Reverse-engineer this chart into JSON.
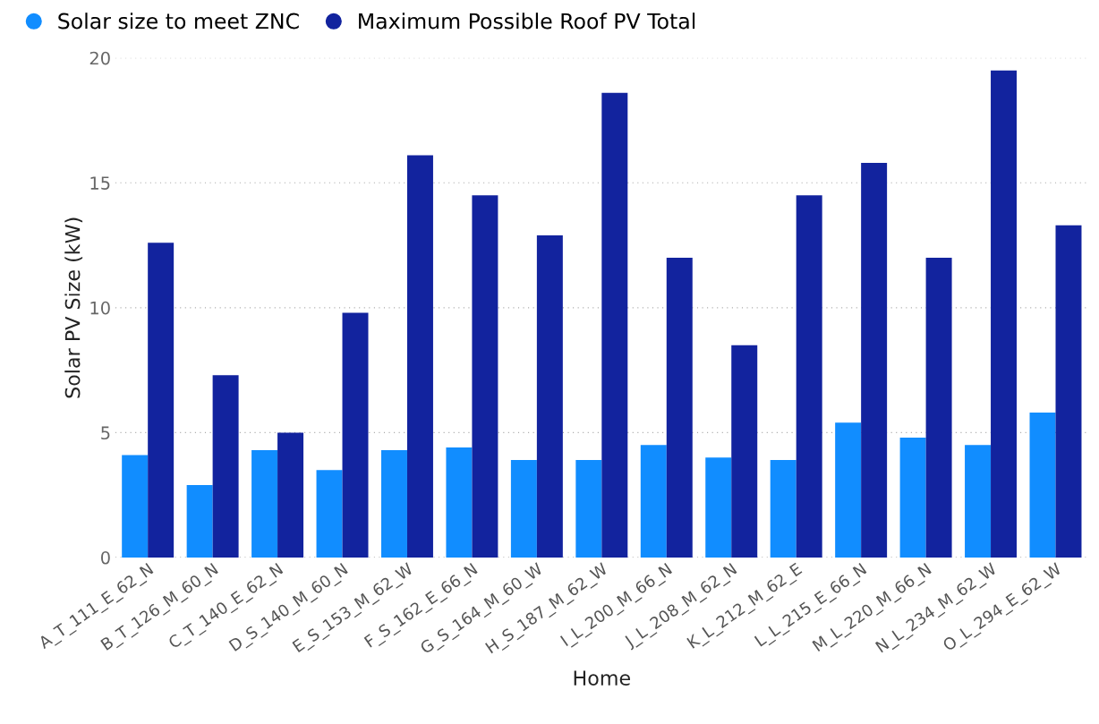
{
  "chart_data": {
    "type": "bar",
    "xlabel": "Home",
    "ylabel": "Solar PV Size (kW)",
    "categories": [
      "A_T_111_E_62_N",
      "B_T_126_M_60_N",
      "C_T_140_E_62_N",
      "D_S_140_M_60_N",
      "E_S_153_M_62_W",
      "F_S_162_E_66_N",
      "G_S_164_M_60_W",
      "H_S_187_M_62_W",
      "I_L_200_M_66_N",
      "J_L_208_M_62_N",
      "K_L_212_M_62_E",
      "L_L_215_E_66_N",
      "M_L_220_M_66_N",
      "N_L_234_M_62_W",
      "O_L_294_E_62_W"
    ],
    "series": [
      {
        "name": "Solar size to meet ZNC",
        "color": "#118dff",
        "values": [
          4.1,
          2.9,
          4.3,
          3.5,
          4.3,
          4.4,
          3.9,
          3.9,
          4.5,
          4.0,
          3.9,
          5.4,
          4.8,
          4.5,
          5.8
        ]
      },
      {
        "name": "Maximum Possible Roof PV Total",
        "color": "#12239e",
        "values": [
          12.6,
          7.3,
          5.0,
          9.8,
          16.1,
          14.5,
          12.9,
          18.6,
          12.0,
          8.5,
          14.5,
          15.8,
          12.0,
          19.5,
          13.3
        ]
      }
    ],
    "ylim": [
      0,
      20
    ],
    "yticks": [
      0,
      5,
      10,
      15,
      20
    ],
    "grid": "y",
    "legend": "top left"
  }
}
